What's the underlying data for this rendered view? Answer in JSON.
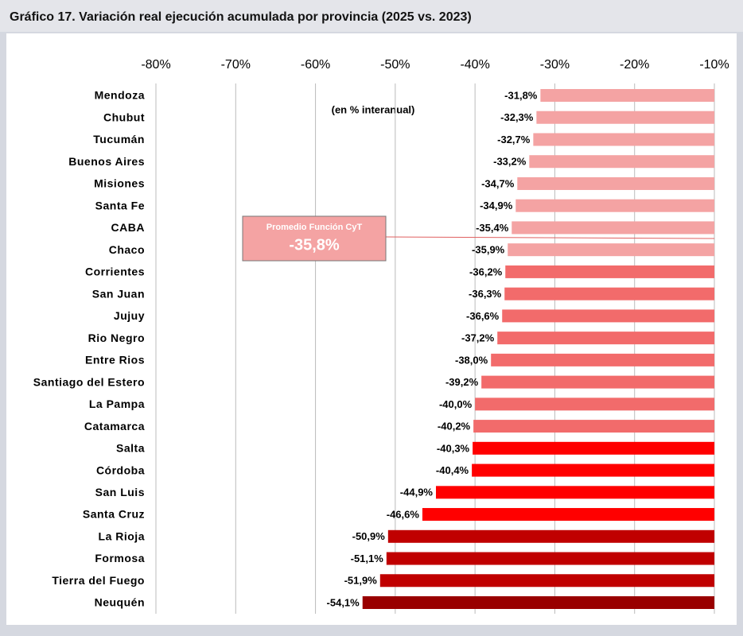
{
  "chart_data": {
    "type": "hbar",
    "title": "Gráfico 17. Variación real ejecución acumulada por provincia (2025 vs. 2023)",
    "subtitle": "(en % interanual)",
    "categories": [
      "Mendoza",
      "Chubut",
      "Tucumán",
      "Buenos Aires",
      "Misiones",
      "Santa Fe",
      "CABA",
      "Chaco",
      "Corrientes",
      "San Juan",
      "Jujuy",
      "Rio Negro",
      "Entre Rios",
      "Santiago del Estero",
      "La Pampa",
      "Catamarca",
      "Salta",
      "Córdoba",
      "San Luis",
      "Santa Cruz",
      "La Rioja",
      "Formosa",
      "Tierra del Fuego",
      "Neuquén"
    ],
    "values": [
      -31.8,
      -32.3,
      -32.7,
      -33.2,
      -34.7,
      -34.9,
      -35.4,
      -35.9,
      -36.2,
      -36.3,
      -36.6,
      -37.2,
      -38.0,
      -39.2,
      -40.0,
      -40.2,
      -40.3,
      -40.4,
      -44.9,
      -46.6,
      -50.9,
      -51.1,
      -51.9,
      -54.1
    ],
    "value_labels": [
      "-31,8%",
      "-32,3%",
      "-32,7%",
      "-33,2%",
      "-34,7%",
      "-34,9%",
      "-35,4%",
      "-35,9%",
      "-36,2%",
      "-36,3%",
      "-36,6%",
      "-37,2%",
      "-38,0%",
      "-39,2%",
      "-40,0%",
      "-40,2%",
      "-40,3%",
      "-40,4%",
      "-44,9%",
      "-46,6%",
      "-50,9%",
      "-51,1%",
      "-51,9%",
      "-54,1%"
    ],
    "colors": [
      "#f4a3a3",
      "#f4a3a3",
      "#f4a3a3",
      "#f4a3a3",
      "#f4a3a3",
      "#f4a3a3",
      "#f4a3a3",
      "#f4a3a3",
      "#f26b6b",
      "#f26b6b",
      "#f26b6b",
      "#f26b6b",
      "#f26b6b",
      "#f26b6b",
      "#f26b6b",
      "#f26b6b",
      "#ff0000",
      "#ff0000",
      "#ff0000",
      "#ff0000",
      "#c00000",
      "#c00000",
      "#c00000",
      "#990000"
    ],
    "xlim": [
      -80,
      -10
    ],
    "xticks": [
      {
        "value": -80,
        "label": "-80%"
      },
      {
        "value": -70,
        "label": "-70%"
      },
      {
        "value": -60,
        "label": "-60%"
      },
      {
        "value": -50,
        "label": "-50%"
      },
      {
        "value": -40,
        "label": "-40%"
      },
      {
        "value": -30,
        "label": "-30%"
      },
      {
        "value": -20,
        "label": "-20%"
      },
      {
        "value": -10,
        "label": "-10%"
      }
    ],
    "grid": true,
    "average": {
      "value": -35.8,
      "label": "Promedio Función CyT",
      "value_label": "-35,8%",
      "color": "#f4a3a3"
    }
  }
}
